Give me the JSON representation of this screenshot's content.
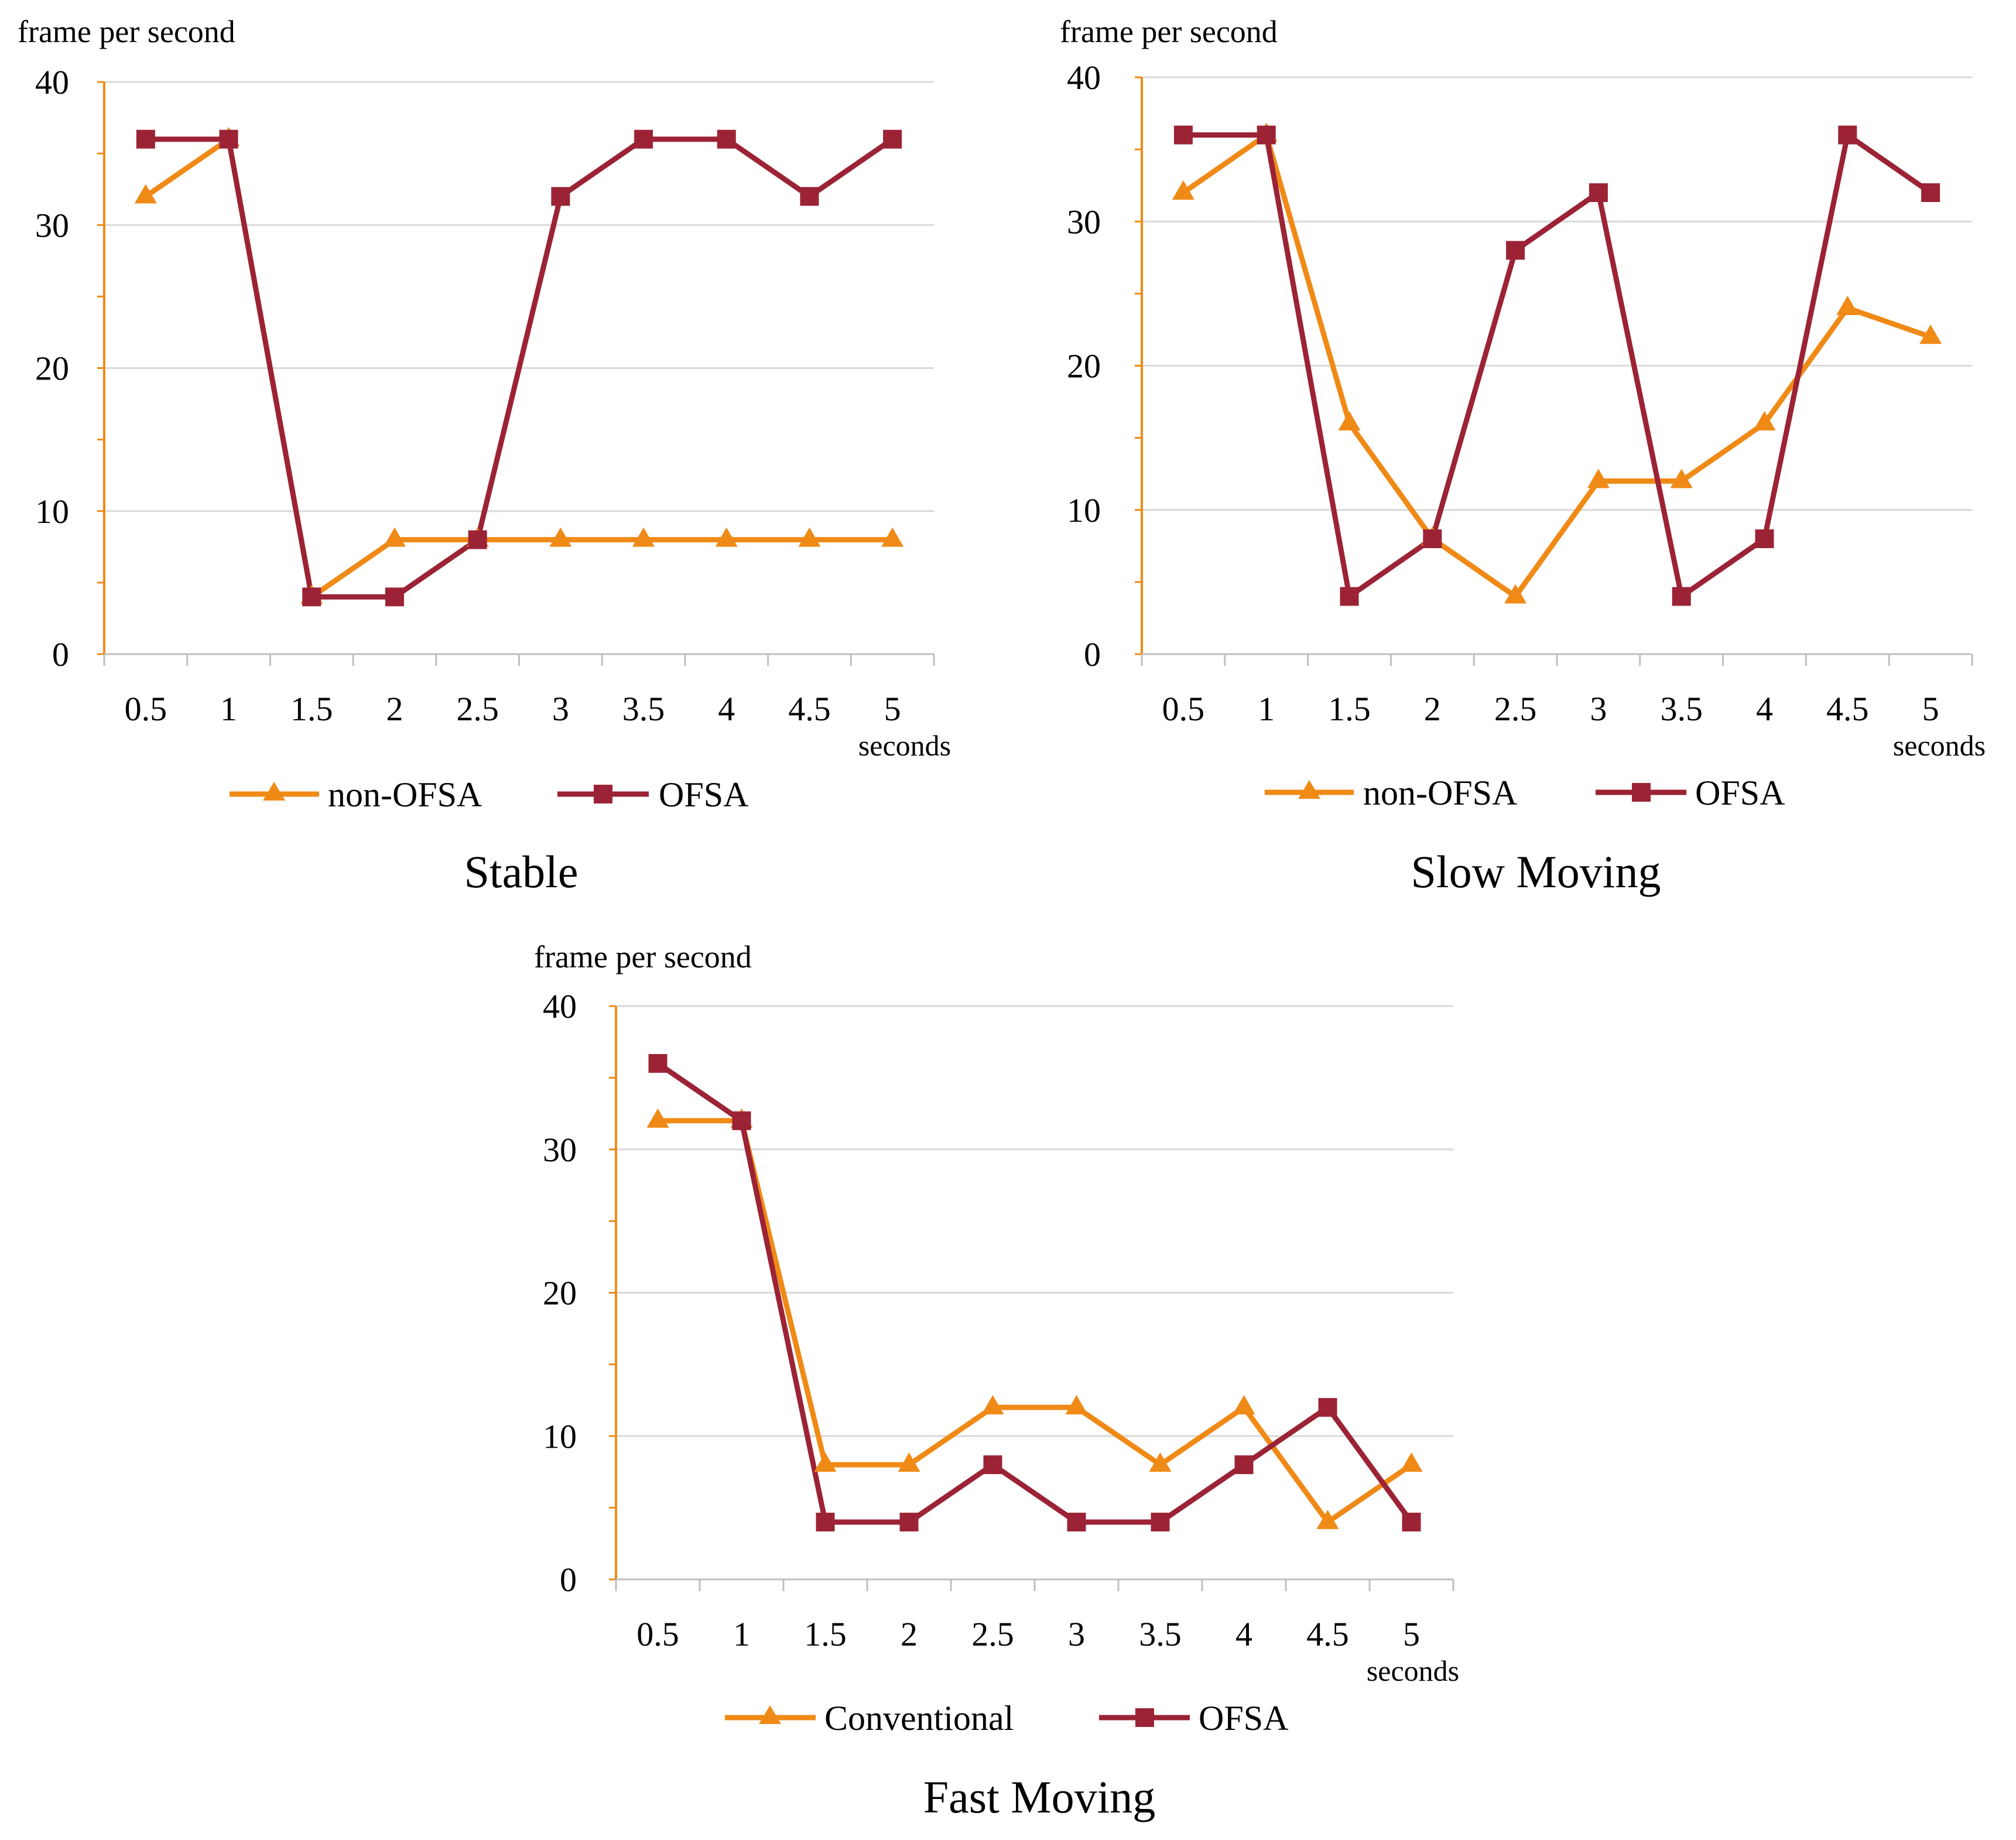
{
  "chart_data": [
    {
      "type": "line",
      "title": "Stable",
      "ylabel": "frame per second",
      "xlabel": "seconds",
      "categories": [
        "0.5",
        "1",
        "1.5",
        "2",
        "2.5",
        "3",
        "3.5",
        "4",
        "4.5",
        "5"
      ],
      "yticks": [
        "0",
        "10",
        "20",
        "30",
        "40"
      ],
      "ylim": [
        0,
        40
      ],
      "grid": true,
      "legend_position": "bottom",
      "series": [
        {
          "name": "non-OFSA",
          "color": "#f08a16",
          "marker": "triangle",
          "values": [
            32,
            36,
            4,
            8,
            8,
            8,
            8,
            8,
            8,
            8
          ]
        },
        {
          "name": "OFSA",
          "color": "#9b2335",
          "marker": "square",
          "values": [
            36,
            36,
            4,
            4,
            8,
            32,
            36,
            36,
            32,
            36
          ]
        }
      ]
    },
    {
      "type": "line",
      "title": "Slow Moving",
      "ylabel": "frame per second",
      "xlabel": "seconds",
      "categories": [
        "0.5",
        "1",
        "1.5",
        "2",
        "2.5",
        "3",
        "3.5",
        "4",
        "4.5",
        "5"
      ],
      "yticks": [
        "0",
        "10",
        "20",
        "30",
        "40"
      ],
      "ylim": [
        0,
        40
      ],
      "grid": true,
      "legend_position": "bottom",
      "series": [
        {
          "name": "non-OFSA",
          "color": "#f08a16",
          "marker": "triangle",
          "values": [
            32,
            36,
            16,
            8,
            4,
            12,
            12,
            16,
            24,
            22
          ]
        },
        {
          "name": "OFSA",
          "color": "#9b2335",
          "marker": "square",
          "values": [
            36,
            36,
            4,
            8,
            28,
            32,
            4,
            8,
            36,
            32
          ]
        }
      ]
    },
    {
      "type": "line",
      "title": "Fast Moving",
      "ylabel": "frame per second",
      "xlabel": "seconds",
      "categories": [
        "0.5",
        "1",
        "1.5",
        "2",
        "2.5",
        "3",
        "3.5",
        "4",
        "4.5",
        "5"
      ],
      "yticks": [
        "0",
        "10",
        "20",
        "30",
        "40"
      ],
      "ylim": [
        0,
        40
      ],
      "grid": true,
      "legend_position": "bottom",
      "series": [
        {
          "name": "Conventional",
          "color": "#f08a16",
          "marker": "triangle",
          "values": [
            32,
            32,
            8,
            8,
            12,
            12,
            8,
            12,
            4,
            8
          ]
        },
        {
          "name": "OFSA",
          "color": "#9b2335",
          "marker": "square",
          "values": [
            36,
            32,
            4,
            4,
            8,
            4,
            4,
            8,
            12,
            4
          ]
        }
      ]
    }
  ]
}
